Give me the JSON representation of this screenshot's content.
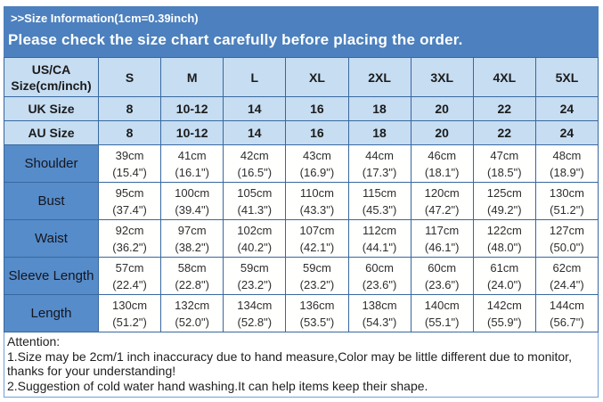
{
  "colors": {
    "banner_bg": "#4C80BE",
    "banner_text": "#FFFFFF",
    "header_row_bg": "#C6DDF2",
    "label_cell_bg": "#568CC9",
    "data_cell_bg": "#FFFFFE",
    "border": "#38689F",
    "table_text": "#1B1B1B"
  },
  "banner": {
    "title": ">>Size Information(1cm=0.39inch)",
    "subtitle": "Please check the size chart carefully before placing the order."
  },
  "size_chart": {
    "corner": [
      "US/CA",
      "Size(cm/inch)"
    ],
    "columns": [
      "S",
      "M",
      "L",
      "XL",
      "2XL",
      "3XL",
      "4XL",
      "5XL"
    ],
    "size_rows": [
      {
        "label": "UK Size",
        "values": [
          "8",
          "10-12",
          "14",
          "16",
          "18",
          "20",
          "22",
          "24"
        ]
      },
      {
        "label": "AU Size",
        "values": [
          "8",
          "10-12",
          "14",
          "16",
          "18",
          "20",
          "22",
          "24"
        ]
      }
    ],
    "measurement_rows": [
      {
        "label": "Shoulder",
        "cm": [
          "39cm",
          "41cm",
          "42cm",
          "43cm",
          "44cm",
          "46cm",
          "47cm",
          "48cm"
        ],
        "inch": [
          "(15.4\")",
          "(16.1\")",
          "(16.5\")",
          "(16.9\")",
          "(17.3\")",
          "(18.1\")",
          "(18.5\")",
          "(18.9\")"
        ]
      },
      {
        "label": "Bust",
        "cm": [
          "95cm",
          "100cm",
          "105cm",
          "110cm",
          "115cm",
          "120cm",
          "125cm",
          "130cm"
        ],
        "inch": [
          "(37.4\")",
          "(39.4\")",
          "(41.3\")",
          "(43.3\")",
          "(45.3\")",
          "(47.2\")",
          "(49.2\")",
          "(51.2\")"
        ]
      },
      {
        "label": "Waist",
        "cm": [
          "92cm",
          "97cm",
          "102cm",
          "107cm",
          "112cm",
          "117cm",
          "122cm",
          "127cm"
        ],
        "inch": [
          "(36.2\")",
          "(38.2\")",
          "(40.2\")",
          "(42.1\")",
          "(44.1\")",
          "(46.1\")",
          "(48.0\")",
          "(50.0\")"
        ]
      },
      {
        "label": "Sleeve Length",
        "cm": [
          "57cm",
          "58cm",
          "59cm",
          "59cm",
          "60cm",
          "60cm",
          "61cm",
          "62cm"
        ],
        "inch": [
          "(22.4\")",
          "(22.8\")",
          "(23.2\")",
          "(23.2\")",
          "(23.6\")",
          "(23.6\")",
          "(24.0\")",
          "(24.4\")"
        ]
      },
      {
        "label": "Length",
        "cm": [
          "130cm",
          "132cm",
          "134cm",
          "136cm",
          "138cm",
          "140cm",
          "142cm",
          "144cm"
        ],
        "inch": [
          "(51.2\")",
          "(52.0\")",
          "(52.8\")",
          "(53.5\")",
          "(54.3\")",
          "(55.1\")",
          "(55.9\")",
          "(56.7\")"
        ]
      }
    ]
  },
  "attention": {
    "lines": [
      "Attention:",
      "1.Size may be 2cm/1 inch inaccuracy due to hand measure,Color may be little different due to monitor,",
      "thanks for your understanding!",
      "2.Suggestion of cold water hand washing.It can help items keep their shape."
    ]
  }
}
